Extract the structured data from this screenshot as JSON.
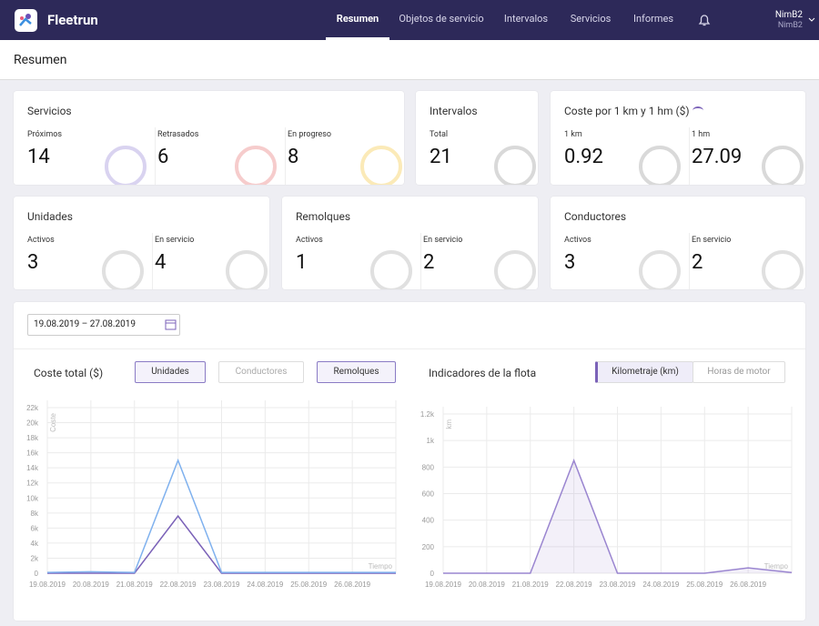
{
  "nav": {
    "brand": "Fleetrun",
    "tabs": [
      "Resumen",
      "Objetos de servicio",
      "Intervalos",
      "Servicios",
      "Informes"
    ],
    "user": "NimB2",
    "account": "NimB2"
  },
  "page_title": "Resumen",
  "cards": [
    {
      "title": "Servicios",
      "stats": [
        {
          "label": "Próximos",
          "value": 14
        },
        {
          "label": "Retrasados",
          "value": 6
        },
        {
          "label": "En progreso",
          "value": 8
        }
      ]
    },
    {
      "title": "Intervalos",
      "stats": [
        {
          "label": "Total",
          "value": 21
        }
      ]
    },
    {
      "title": "Coste por 1 km y 1 hm ($)",
      "stats": [
        {
          "label": "1 km",
          "value": 0.92
        },
        {
          "label": "1 hm",
          "value": 27.09
        }
      ]
    },
    {
      "title": "Unidades",
      "stats": [
        {
          "label": "Activos",
          "value": 3
        },
        {
          "label": "En servicio",
          "value": 4
        }
      ]
    },
    {
      "title": "Remolques",
      "stats": [
        {
          "label": "Activos",
          "value": 1
        },
        {
          "label": "En servicio",
          "value": 2
        }
      ]
    },
    {
      "title": "Conductores",
      "stats": [
        {
          "label": "Activos",
          "value": 3
        },
        {
          "label": "En servicio",
          "value": 2
        }
      ]
    }
  ],
  "date_range": "19.08.2019 – 27.08.2019",
  "chart_data": [
    {
      "type": "line",
      "title": "Coste total ($)",
      "disabled_legend": "Conductores",
      "y_label": "Coste",
      "x_label": "Tiempo",
      "categories": [
        "19.08.2019",
        "20.08.2019",
        "21.08.2019",
        "22.08.2019",
        "23.08.2019",
        "24.08.2019",
        "25.08.2019",
        "26.08.2019",
        null
      ],
      "series": [
        {
          "name": "Unidades",
          "color": "#7b62b8",
          "values": [
            0,
            0,
            0,
            7600,
            0,
            0,
            0,
            0,
            0
          ]
        },
        {
          "name": "Remolques",
          "color": "#7fb1ee",
          "values": [
            100,
            200,
            100,
            15000,
            100,
            100,
            100,
            100,
            100
          ]
        }
      ],
      "ylim": [
        0,
        22000
      ],
      "yticks": [
        0,
        {
          "value": 2000,
          "label": "2k"
        },
        {
          "value": 4000,
          "label": "4k"
        },
        {
          "value": 6000,
          "label": "6k"
        },
        {
          "value": 8000,
          "label": "8k"
        },
        {
          "value": 10000,
          "label": "10k"
        },
        {
          "value": 12000,
          "label": "12k"
        },
        {
          "value": 14000,
          "label": "14k"
        },
        {
          "value": 16000,
          "label": "16k"
        },
        {
          "value": 18000,
          "label": "18k"
        },
        {
          "value": 20000,
          "label": "20k"
        },
        {
          "value": 22000,
          "label": "22k"
        }
      ],
      "grid": true
    },
    {
      "type": "area",
      "title": "Indicadores de la flota",
      "modes": [
        "Kilometraje (km)",
        "Horas de motor"
      ],
      "y_label": "km",
      "x_label": "Tiempo",
      "categories": [
        "19.08.2019",
        "20.08.2019",
        "21.08.2019",
        "22.08.2019",
        "23.08.2019",
        "24.08.2019",
        "25.08.2019",
        "26.08.2019",
        null
      ],
      "series": [
        {
          "color": "#9a85d0",
          "values": [
            0,
            0,
            0,
            850,
            0,
            0,
            0,
            40,
            5
          ]
        }
      ],
      "ylim": [
        0,
        1200
      ],
      "yticks": [
        0,
        200,
        400,
        600,
        800,
        {
          "value": 1000,
          "label": "1k"
        },
        {
          "value": 1200,
          "label": "1.2k"
        }
      ],
      "grid": true
    }
  ]
}
